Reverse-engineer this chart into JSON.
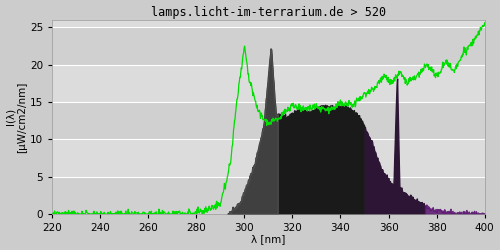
{
  "title": "lamps.licht-im-terrarium.de > 520",
  "xlabel": "λ [nm]",
  "ylabel_line1": "I(λ)",
  "ylabel_line2": "[µW/cm2/nm]",
  "xlim": [
    220,
    400
  ],
  "ylim": [
    0,
    26
  ],
  "xticks": [
    220,
    240,
    260,
    280,
    300,
    320,
    340,
    360,
    380,
    400
  ],
  "yticks": [
    0,
    5,
    10,
    15,
    20,
    25
  ],
  "bg_color": "#cccccc",
  "plot_bg_dark": "#d0d0d0",
  "plot_bg_light": "#dcdcdc",
  "title_fontsize": 8.5,
  "axis_fontsize": 7.5,
  "tick_fontsize": 7.5,
  "green_color": "#00dd00",
  "fill_dark_gray": "#1a1a1a",
  "fill_purple_dark": "#2d1535",
  "fill_purple": "#5a1570"
}
